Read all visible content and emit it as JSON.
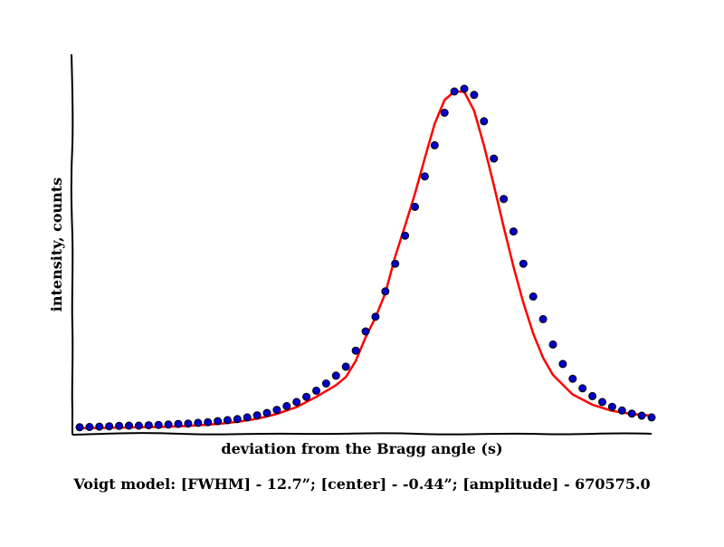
{
  "chart_data": {
    "type": "scatter",
    "title": "",
    "xlabel": "deviation from the Bragg angle (s)",
    "ylabel": "intensity, counts",
    "caption": "Voigt model:   [FWHM] - 12.7”; [center] - -0.44”; [amplitude] - 670575.0",
    "grid": false,
    "legend": "none",
    "axis_ticks": "none",
    "ylim": [
      0,
      1.0
    ],
    "series": [
      {
        "kind": "points",
        "color": "#0000cc",
        "edge_color": "#000000",
        "x": [
          0,
          1,
          2,
          3,
          4,
          5,
          6,
          7,
          8,
          9,
          10,
          11,
          12,
          13,
          14,
          15,
          16,
          17,
          18,
          19,
          20,
          21,
          22,
          23,
          24,
          25,
          26,
          27,
          28,
          29,
          30,
          31,
          32,
          33,
          34,
          35,
          36,
          37,
          38,
          39,
          40,
          41,
          42,
          43,
          44,
          45,
          46,
          47,
          48,
          49,
          50,
          51,
          52,
          53,
          54,
          55,
          56,
          57,
          58
        ],
        "y": [
          0.011,
          0.012,
          0.013,
          0.014,
          0.015,
          0.016,
          0.016,
          0.017,
          0.018,
          0.019,
          0.021,
          0.022,
          0.024,
          0.026,
          0.029,
          0.032,
          0.035,
          0.04,
          0.046,
          0.053,
          0.062,
          0.073,
          0.085,
          0.1,
          0.118,
          0.139,
          0.162,
          0.188,
          0.235,
          0.291,
          0.334,
          0.408,
          0.489,
          0.571,
          0.655,
          0.744,
          0.835,
          0.93,
          0.992,
          1.0,
          0.982,
          0.905,
          0.796,
          0.678,
          0.583,
          0.489,
          0.393,
          0.327,
          0.253,
          0.196,
          0.153,
          0.125,
          0.102,
          0.085,
          0.071,
          0.06,
          0.051,
          0.045,
          0.04
        ]
      },
      {
        "kind": "line",
        "color": "#ff0000",
        "x": [
          0,
          2,
          4,
          6,
          8,
          10,
          12,
          14,
          16,
          18,
          20,
          22,
          24,
          26,
          27,
          28,
          29,
          30,
          31,
          32,
          33,
          34,
          35,
          36,
          37,
          38,
          39,
          40,
          41,
          42,
          43,
          44,
          45,
          46,
          47,
          48,
          50,
          52,
          54,
          56,
          58
        ],
        "y": [
          0.008,
          0.009,
          0.01,
          0.011,
          0.012,
          0.014,
          0.017,
          0.021,
          0.027,
          0.036,
          0.05,
          0.07,
          0.1,
          0.134,
          0.158,
          0.205,
          0.274,
          0.332,
          0.403,
          0.51,
          0.6,
          0.693,
          0.797,
          0.898,
          0.967,
          0.992,
          0.991,
          0.936,
          0.834,
          0.718,
          0.596,
          0.48,
          0.375,
          0.285,
          0.214,
          0.164,
          0.107,
          0.077,
          0.059,
          0.05,
          0.045
        ]
      }
    ]
  }
}
